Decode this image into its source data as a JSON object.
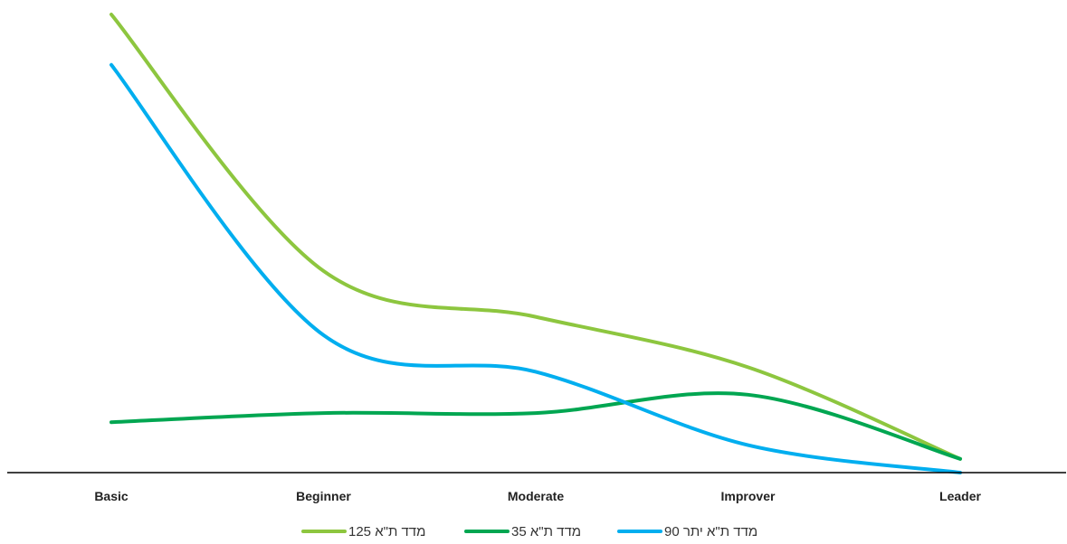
{
  "chart_data": {
    "type": "line",
    "title": "",
    "xlabel": "",
    "ylabel": "",
    "categories": [
      "Basic",
      "Beginner",
      "Moderate",
      "Improver",
      "Leader"
    ],
    "ylim": [
      0,
      100
    ],
    "grid": false,
    "smooth": true,
    "legend_position": "bottom",
    "series": [
      {
        "name": "מדד ת\"א 125",
        "color": "#8DC63F",
        "values": [
          100,
          44,
          34,
          23,
          3
        ]
      },
      {
        "name": "מדד ת\"א 35",
        "color": "#00A651",
        "values": [
          11,
          13,
          13,
          17,
          3
        ]
      },
      {
        "name": "מדד ת\"א יתר 90",
        "color": "#00AEEF",
        "values": [
          89,
          30,
          22,
          6,
          0
        ]
      }
    ]
  }
}
